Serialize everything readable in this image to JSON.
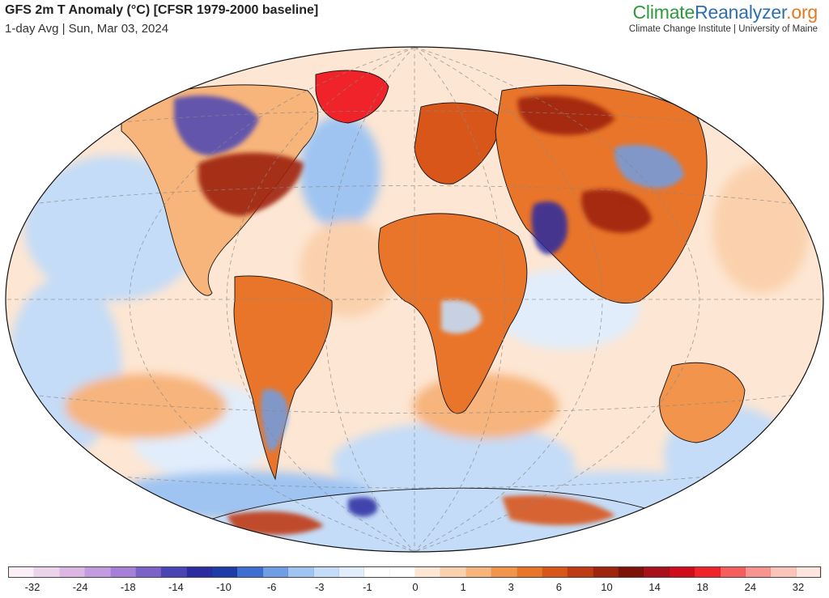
{
  "header": {
    "title": "GFS 2m T Anomaly (°C) [CFSR 1979-2000 baseline]",
    "subtitle": "1-day Avg | Sun, Mar 03, 2024"
  },
  "brand": {
    "logo_part1": "Climate",
    "logo_part2": "Reanalyzer",
    "logo_part3": ".org",
    "tagline": "Climate Change Institute | University of Maine"
  },
  "legend": {
    "colors": [
      "#fbeef6",
      "#ecd3ec",
      "#dcb7e4",
      "#c39be0",
      "#a57fd8",
      "#7a62c8",
      "#4a45b4",
      "#2b2ca0",
      "#1e3ba8",
      "#3d6fd0",
      "#6f9ee4",
      "#9fc4f2",
      "#c4dcf7",
      "#e1edfb",
      "#ffffff",
      "#ffffff",
      "#fde6d3",
      "#fbd1ad",
      "#f7b47b",
      "#f2944c",
      "#e9752a",
      "#d9561b",
      "#bf3b13",
      "#9e2410",
      "#7d1209",
      "#a8101c",
      "#d00b1c",
      "#f0222a",
      "#f65d5d",
      "#f89490",
      "#fbc4bb",
      "#fde5df"
    ],
    "ticks": [
      "-32",
      "-24",
      "-18",
      "-14",
      "-10",
      "-6",
      "-3",
      "-1",
      "0",
      "1",
      "3",
      "6",
      "10",
      "14",
      "18",
      "24",
      "32"
    ]
  },
  "map": {
    "projection": "Winkel Tripel",
    "colors": {
      "ocean_warm": "#fbd1ad",
      "ocean_cool": "#c4dcf7",
      "land_warm": "#e9752a",
      "land_hot": "#9e2410",
      "land_cold": "#3d6fd0",
      "greenland_hot": "#f0222a",
      "coast": "#111111",
      "graticule": "#888888"
    }
  }
}
